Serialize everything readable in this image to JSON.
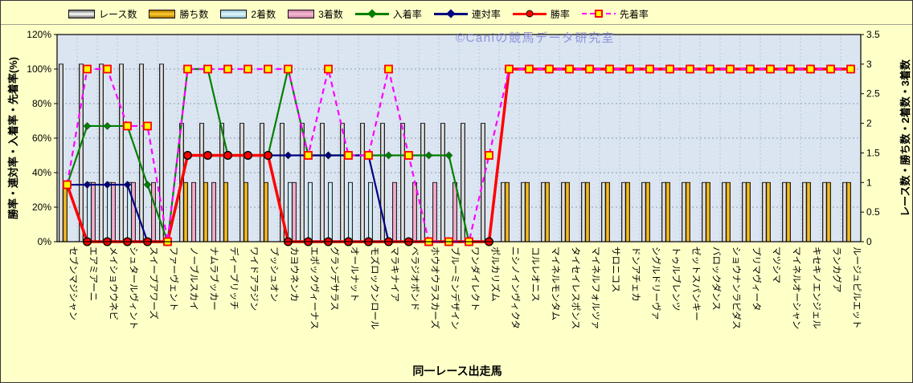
{
  "page": {
    "background": "#FFFFC8",
    "watermark": "©Caniの競馬データ研究室",
    "watermark_color": "#7A7AD6"
  },
  "axes": {
    "left_title": "勝率・連対率・入着率・先着率(%)",
    "right_title": "レース数・勝ち数・2着数・3着数",
    "x_title": "同一レース出走馬",
    "left_ticks": [
      "0%",
      "20%",
      "40%",
      "60%",
      "80%",
      "100%",
      "120%"
    ],
    "right_ticks": [
      "0",
      "0.5",
      "1",
      "1.5",
      "2",
      "2.5",
      "3",
      "3.5"
    ]
  },
  "chart_data": {
    "type": "bar",
    "subtype": "bar+line combo, dual axis",
    "title": "",
    "xlabel": "同一レース出走馬",
    "left_axis": {
      "label": "勝率・連対率・入着率・先着率(%)",
      "min": 0,
      "max": 120,
      "step": 20,
      "unit": "%"
    },
    "right_axis": {
      "label": "レース数・勝ち数・2着数・3着数",
      "min": 0,
      "max": 3.5,
      "step": 0.5
    },
    "grid": true,
    "legend_position": "top-left",
    "categories": [
      "セブンマジシャン",
      "エアミアーニ",
      "メイショウウネビ",
      "シュタールヴィント",
      "スイープアワーズ",
      "ファーヴェント",
      "ノーブルスカイ",
      "ナムラブッカー",
      "ディープリッチ",
      "ワイドアラジン",
      "プッシュオン",
      "カヨウネンカ",
      "エポックヴィーナス",
      "グランデサラス",
      "オールナット",
      "モズロックンロール",
      "マラキナイア",
      "ベラジオボンド",
      "ホウオウラスカーズ",
      "ブルーミンデザイン",
      "ワンダイレクト",
      "ポルカリズム",
      "ニシノインヴィクタ",
      "コルレオニス",
      "マイネルモンタム",
      "タイセイレスポンス",
      "マイネルフォルツァ",
      "サロニコス",
      "ドンアチェカ",
      "シグルドリーヴァ",
      "トゥルブレンツ",
      "ゼットスパンキー",
      "バロックダンス",
      "ショウナンラピダス",
      "プリマヴィータ",
      "マツシマ",
      "マイネルオーシャン",
      "キセキノエンジェル",
      "ランカグア",
      "ルージュピルエット"
    ],
    "series": [
      {
        "name": "レース数",
        "kind": "bar",
        "axis": "right",
        "edge": "#6f6f6f",
        "mid": "#ffffff",
        "values": [
          3,
          3,
          3,
          3,
          3,
          3,
          2,
          2,
          2,
          2,
          2,
          2,
          2,
          2,
          2,
          2,
          2,
          2,
          2,
          2,
          2,
          2,
          1,
          1,
          1,
          1,
          1,
          1,
          1,
          1,
          1,
          1,
          1,
          1,
          1,
          1,
          1,
          1,
          1,
          1
        ]
      },
      {
        "name": "勝ち数",
        "kind": "bar",
        "axis": "right",
        "edge": "#b07400",
        "mid": "#ffcf30",
        "values": [
          1,
          0,
          0,
          0,
          0,
          0,
          1,
          1,
          1,
          1,
          1,
          0,
          0,
          0,
          0,
          0,
          0,
          0,
          0,
          0,
          0,
          0,
          1,
          1,
          1,
          1,
          1,
          1,
          1,
          1,
          1,
          1,
          1,
          1,
          1,
          1,
          1,
          1,
          1,
          1
        ]
      },
      {
        "name": "2着数",
        "kind": "bar",
        "axis": "right",
        "edge": "#8fc3d4",
        "mid": "#e6f7fb",
        "values": [
          0,
          1,
          1,
          1,
          0,
          0,
          0,
          0,
          0,
          0,
          0,
          1,
          1,
          1,
          1,
          1,
          0,
          0,
          0,
          0,
          0,
          0,
          0,
          0,
          0,
          0,
          0,
          0,
          0,
          0,
          0,
          0,
          0,
          0,
          0,
          0,
          0,
          0,
          0,
          0
        ]
      },
      {
        "name": "3着数",
        "kind": "bar",
        "axis": "right",
        "edge": "#cc7fa6",
        "mid": "#f9bcd4",
        "values": [
          0,
          1,
          1,
          1,
          1,
          0,
          1,
          1,
          0,
          0,
          0,
          1,
          0,
          0,
          0,
          0,
          1,
          1,
          1,
          1,
          0,
          0,
          0,
          0,
          0,
          0,
          0,
          0,
          0,
          0,
          0,
          0,
          0,
          0,
          0,
          0,
          0,
          0,
          0,
          0
        ]
      },
      {
        "name": "入着率",
        "kind": "line",
        "axis": "left",
        "color": "#008000",
        "marker": "diamond",
        "dashed": false,
        "values": [
          33,
          67,
          67,
          67,
          33,
          0,
          100,
          100,
          50,
          50,
          50,
          100,
          50,
          50,
          50,
          50,
          50,
          50,
          50,
          50,
          0,
          0,
          100,
          100,
          100,
          100,
          100,
          100,
          100,
          100,
          100,
          100,
          100,
          100,
          100,
          100,
          100,
          100,
          100,
          100
        ]
      },
      {
        "name": "連対率",
        "kind": "line",
        "axis": "left",
        "color": "#000080",
        "marker": "diamond",
        "dashed": false,
        "values": [
          33,
          33,
          33,
          33,
          0,
          0,
          50,
          50,
          50,
          50,
          50,
          50,
          50,
          50,
          50,
          50,
          0,
          0,
          0,
          0,
          0,
          0,
          100,
          100,
          100,
          100,
          100,
          100,
          100,
          100,
          100,
          100,
          100,
          100,
          100,
          100,
          100,
          100,
          100,
          100
        ]
      },
      {
        "name": "勝率",
        "kind": "line",
        "axis": "left",
        "color": "#FF0000",
        "marker": "circle",
        "dashed": false,
        "values": [
          33,
          0,
          0,
          0,
          0,
          0,
          50,
          50,
          50,
          50,
          50,
          0,
          0,
          0,
          0,
          0,
          0,
          0,
          0,
          0,
          0,
          0,
          100,
          100,
          100,
          100,
          100,
          100,
          100,
          100,
          100,
          100,
          100,
          100,
          100,
          100,
          100,
          100,
          100,
          100
        ]
      },
      {
        "name": "先着率",
        "kind": "line",
        "axis": "left",
        "color": "#FF00FF",
        "marker": "square",
        "marker_fill": "#FFFF00",
        "marker_stroke": "#FF0000",
        "dashed": true,
        "values": [
          33,
          100,
          100,
          67,
          67,
          0,
          100,
          100,
          100,
          100,
          100,
          100,
          50,
          100,
          50,
          50,
          100,
          50,
          0,
          0,
          0,
          50,
          100,
          100,
          100,
          100,
          100,
          100,
          100,
          100,
          100,
          100,
          100,
          100,
          100,
          100,
          100,
          100,
          100,
          100
        ]
      }
    ]
  }
}
